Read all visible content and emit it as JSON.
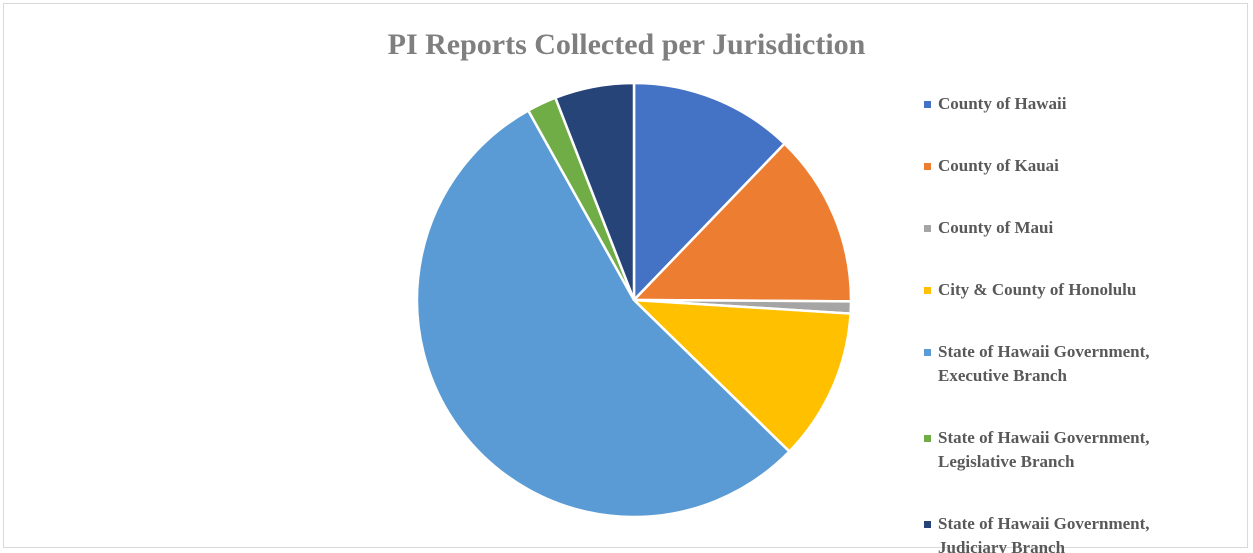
{
  "chart_data": {
    "type": "pie",
    "title": "PI Reports Collected per Jurisdiction",
    "categories": [
      "County of Hawaii",
      "County of Kauai",
      "County of Maui",
      "City & County of Honolulu",
      "State of Hawaii Government, Executive Branch",
      "State of Hawaii Government, Legislative Branch",
      "State of Hawaii Government, Judiciary Branch"
    ],
    "values": [
      12.2,
      12.9,
      0.9,
      11.3,
      54.6,
      2.2,
      5.9
    ],
    "colors": [
      "#4472c4",
      "#ed7d31",
      "#a5a5a5",
      "#ffc000",
      "#5b9bd5",
      "#70ad47",
      "#264478"
    ],
    "legend": "right"
  }
}
